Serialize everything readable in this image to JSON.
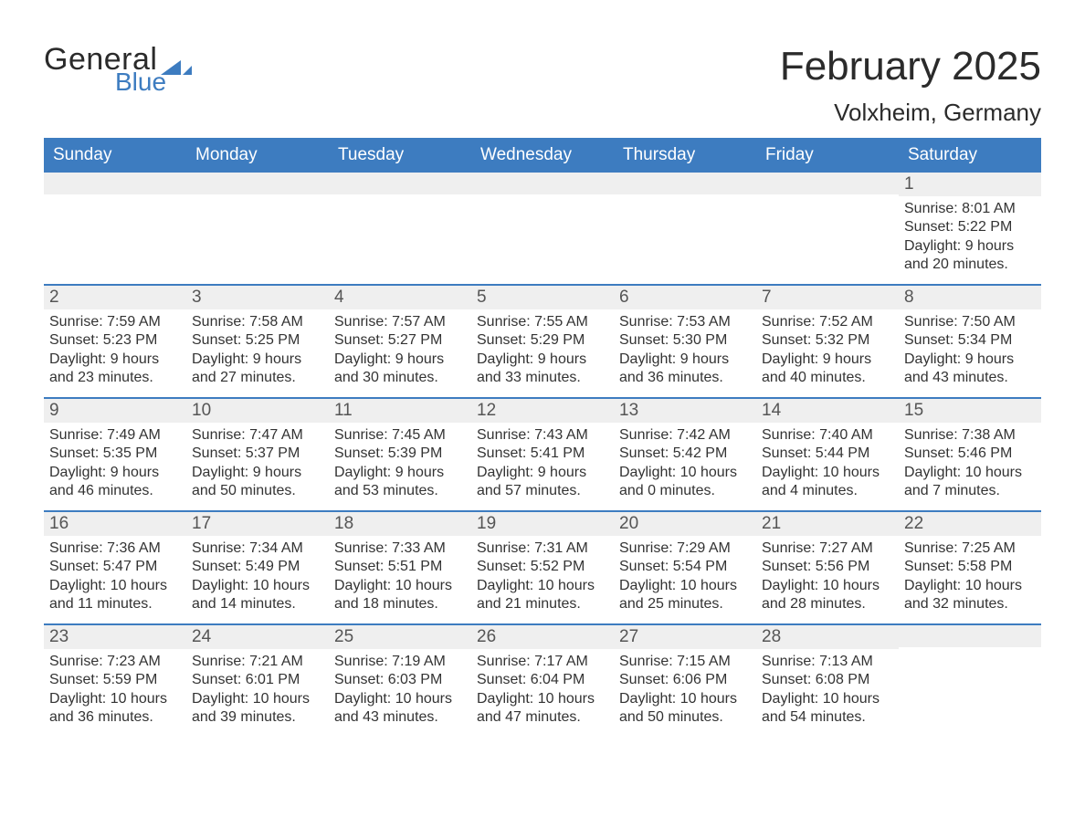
{
  "brand": {
    "word1": "General",
    "word2": "Blue",
    "accent_color": "#3d7cc0",
    "text_color": "#2b2b2b"
  },
  "title": "February 2025",
  "location": "Volxheim, Germany",
  "colors": {
    "header_bg": "#3d7cc0",
    "header_text": "#ffffff",
    "daynum_bg": "#efefef",
    "row_separator": "#3d7cc0",
    "page_bg": "#ffffff",
    "body_text": "#333333"
  },
  "weekday_labels": [
    "Sunday",
    "Monday",
    "Tuesday",
    "Wednesday",
    "Thursday",
    "Friday",
    "Saturday"
  ],
  "calendar": {
    "cols": 7,
    "weeks": [
      [
        {
          "blank": true
        },
        {
          "blank": true
        },
        {
          "blank": true
        },
        {
          "blank": true
        },
        {
          "blank": true
        },
        {
          "blank": true
        },
        {
          "day": "1",
          "sunrise": "Sunrise: 8:01 AM",
          "sunset": "Sunset: 5:22 PM",
          "daylight": "Daylight: 9 hours and 20 minutes."
        }
      ],
      [
        {
          "day": "2",
          "sunrise": "Sunrise: 7:59 AM",
          "sunset": "Sunset: 5:23 PM",
          "daylight": "Daylight: 9 hours and 23 minutes."
        },
        {
          "day": "3",
          "sunrise": "Sunrise: 7:58 AM",
          "sunset": "Sunset: 5:25 PM",
          "daylight": "Daylight: 9 hours and 27 minutes."
        },
        {
          "day": "4",
          "sunrise": "Sunrise: 7:57 AM",
          "sunset": "Sunset: 5:27 PM",
          "daylight": "Daylight: 9 hours and 30 minutes."
        },
        {
          "day": "5",
          "sunrise": "Sunrise: 7:55 AM",
          "sunset": "Sunset: 5:29 PM",
          "daylight": "Daylight: 9 hours and 33 minutes."
        },
        {
          "day": "6",
          "sunrise": "Sunrise: 7:53 AM",
          "sunset": "Sunset: 5:30 PM",
          "daylight": "Daylight: 9 hours and 36 minutes."
        },
        {
          "day": "7",
          "sunrise": "Sunrise: 7:52 AM",
          "sunset": "Sunset: 5:32 PM",
          "daylight": "Daylight: 9 hours and 40 minutes."
        },
        {
          "day": "8",
          "sunrise": "Sunrise: 7:50 AM",
          "sunset": "Sunset: 5:34 PM",
          "daylight": "Daylight: 9 hours and 43 minutes."
        }
      ],
      [
        {
          "day": "9",
          "sunrise": "Sunrise: 7:49 AM",
          "sunset": "Sunset: 5:35 PM",
          "daylight": "Daylight: 9 hours and 46 minutes."
        },
        {
          "day": "10",
          "sunrise": "Sunrise: 7:47 AM",
          "sunset": "Sunset: 5:37 PM",
          "daylight": "Daylight: 9 hours and 50 minutes."
        },
        {
          "day": "11",
          "sunrise": "Sunrise: 7:45 AM",
          "sunset": "Sunset: 5:39 PM",
          "daylight": "Daylight: 9 hours and 53 minutes."
        },
        {
          "day": "12",
          "sunrise": "Sunrise: 7:43 AM",
          "sunset": "Sunset: 5:41 PM",
          "daylight": "Daylight: 9 hours and 57 minutes."
        },
        {
          "day": "13",
          "sunrise": "Sunrise: 7:42 AM",
          "sunset": "Sunset: 5:42 PM",
          "daylight": "Daylight: 10 hours and 0 minutes."
        },
        {
          "day": "14",
          "sunrise": "Sunrise: 7:40 AM",
          "sunset": "Sunset: 5:44 PM",
          "daylight": "Daylight: 10 hours and 4 minutes."
        },
        {
          "day": "15",
          "sunrise": "Sunrise: 7:38 AM",
          "sunset": "Sunset: 5:46 PM",
          "daylight": "Daylight: 10 hours and 7 minutes."
        }
      ],
      [
        {
          "day": "16",
          "sunrise": "Sunrise: 7:36 AM",
          "sunset": "Sunset: 5:47 PM",
          "daylight": "Daylight: 10 hours and 11 minutes."
        },
        {
          "day": "17",
          "sunrise": "Sunrise: 7:34 AM",
          "sunset": "Sunset: 5:49 PM",
          "daylight": "Daylight: 10 hours and 14 minutes."
        },
        {
          "day": "18",
          "sunrise": "Sunrise: 7:33 AM",
          "sunset": "Sunset: 5:51 PM",
          "daylight": "Daylight: 10 hours and 18 minutes."
        },
        {
          "day": "19",
          "sunrise": "Sunrise: 7:31 AM",
          "sunset": "Sunset: 5:52 PM",
          "daylight": "Daylight: 10 hours and 21 minutes."
        },
        {
          "day": "20",
          "sunrise": "Sunrise: 7:29 AM",
          "sunset": "Sunset: 5:54 PM",
          "daylight": "Daylight: 10 hours and 25 minutes."
        },
        {
          "day": "21",
          "sunrise": "Sunrise: 7:27 AM",
          "sunset": "Sunset: 5:56 PM",
          "daylight": "Daylight: 10 hours and 28 minutes."
        },
        {
          "day": "22",
          "sunrise": "Sunrise: 7:25 AM",
          "sunset": "Sunset: 5:58 PM",
          "daylight": "Daylight: 10 hours and 32 minutes."
        }
      ],
      [
        {
          "day": "23",
          "sunrise": "Sunrise: 7:23 AM",
          "sunset": "Sunset: 5:59 PM",
          "daylight": "Daylight: 10 hours and 36 minutes."
        },
        {
          "day": "24",
          "sunrise": "Sunrise: 7:21 AM",
          "sunset": "Sunset: 6:01 PM",
          "daylight": "Daylight: 10 hours and 39 minutes."
        },
        {
          "day": "25",
          "sunrise": "Sunrise: 7:19 AM",
          "sunset": "Sunset: 6:03 PM",
          "daylight": "Daylight: 10 hours and 43 minutes."
        },
        {
          "day": "26",
          "sunrise": "Sunrise: 7:17 AM",
          "sunset": "Sunset: 6:04 PM",
          "daylight": "Daylight: 10 hours and 47 minutes."
        },
        {
          "day": "27",
          "sunrise": "Sunrise: 7:15 AM",
          "sunset": "Sunset: 6:06 PM",
          "daylight": "Daylight: 10 hours and 50 minutes."
        },
        {
          "day": "28",
          "sunrise": "Sunrise: 7:13 AM",
          "sunset": "Sunset: 6:08 PM",
          "daylight": "Daylight: 10 hours and 54 minutes."
        },
        {
          "blank": true
        }
      ]
    ]
  }
}
